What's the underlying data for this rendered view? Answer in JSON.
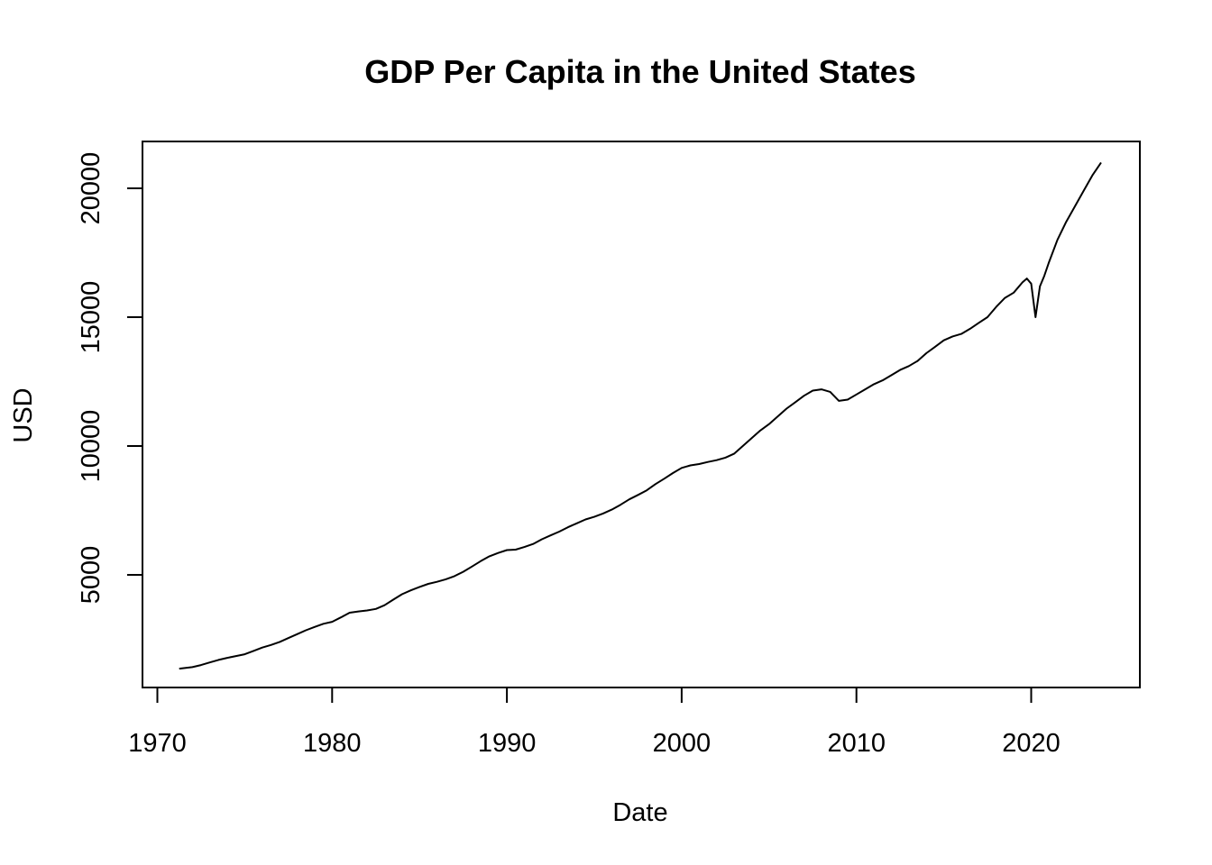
{
  "chart_data": {
    "type": "line",
    "title": "GDP Per Capita in the United States",
    "xlabel": "Date",
    "ylabel": "USD",
    "xlim": [
      1970,
      2026
    ],
    "ylim": [
      1000,
      22000
    ],
    "x_ticks": [
      1970,
      1980,
      1990,
      2000,
      2010,
      2020
    ],
    "x_tick_labels": [
      "1970",
      "1980",
      "1990",
      "2000",
      "2010",
      "2020"
    ],
    "y_ticks": [
      5000,
      10000,
      15000,
      20000
    ],
    "y_tick_labels": [
      "5000",
      "10000",
      "15000",
      "20000"
    ],
    "grid": false,
    "legend": "none",
    "line_color": "#000000",
    "series": [
      {
        "x": [
          1971.25,
          1972.0,
          1972.5,
          1973.0,
          1973.5,
          1974.0,
          1974.5,
          1975.0,
          1975.5,
          1976.0,
          1976.5,
          1977.0,
          1977.5,
          1978.0,
          1978.5,
          1979.0,
          1979.5,
          1980.0,
          1980.5,
          1981.0,
          1981.5,
          1982.0,
          1982.5,
          1983.0,
          1983.5,
          1984.0,
          1984.5,
          1985.0,
          1985.5,
          1986.0,
          1986.5,
          1987.0,
          1987.5,
          1988.0,
          1988.5,
          1989.0,
          1989.5,
          1990.0,
          1990.5,
          1991.0,
          1991.5,
          1992.0,
          1992.5,
          1993.0,
          1993.5,
          1994.0,
          1994.5,
          1995.0,
          1995.5,
          1996.0,
          1996.5,
          1997.0,
          1997.5,
          1998.0,
          1998.5,
          1999.0,
          1999.5,
          2000.0,
          2000.5,
          2001.0,
          2001.5,
          2002.0,
          2002.5,
          2003.0,
          2003.5,
          2004.0,
          2004.5,
          2005.0,
          2005.5,
          2006.0,
          2006.5,
          2007.0,
          2007.5,
          2008.0,
          2008.5,
          2009.0,
          2009.5,
          2010.0,
          2010.5,
          2011.0,
          2011.5,
          2012.0,
          2012.5,
          2013.0,
          2013.5,
          2014.0,
          2014.5,
          2015.0,
          2015.5,
          2016.0,
          2016.5,
          2017.0,
          2017.5,
          2018.0,
          2018.5,
          2019.0,
          2019.5,
          2019.75,
          2020.0,
          2020.25,
          2020.5,
          2020.75,
          2021.0,
          2021.5,
          2022.0,
          2022.5,
          2023.0,
          2023.5,
          2024.0
        ],
        "y": [
          1360,
          1420,
          1500,
          1600,
          1700,
          1780,
          1850,
          1920,
          2050,
          2180,
          2280,
          2400,
          2550,
          2700,
          2850,
          2980,
          3100,
          3180,
          3350,
          3530,
          3580,
          3620,
          3680,
          3820,
          4040,
          4250,
          4400,
          4530,
          4650,
          4730,
          4830,
          4950,
          5120,
          5320,
          5530,
          5720,
          5850,
          5960,
          5980,
          6080,
          6200,
          6380,
          6530,
          6680,
          6850,
          7000,
          7150,
          7250,
          7380,
          7530,
          7720,
          7930,
          8100,
          8280,
          8520,
          8730,
          8950,
          9150,
          9250,
          9300,
          9380,
          9450,
          9550,
          9700,
          10000,
          10300,
          10600,
          10850,
          11150,
          11450,
          11700,
          11950,
          12150,
          12200,
          12100,
          11750,
          11800,
          12000,
          12200,
          12400,
          12550,
          12750,
          12950,
          13100,
          13300,
          13600,
          13850,
          14100,
          14250,
          14350,
          14550,
          14780,
          15000,
          15400,
          15750,
          15950,
          16350,
          16500,
          16300,
          15000,
          16200,
          16600,
          17100,
          18000,
          18700,
          19300,
          19900,
          20500,
          21000
        ]
      }
    ]
  }
}
